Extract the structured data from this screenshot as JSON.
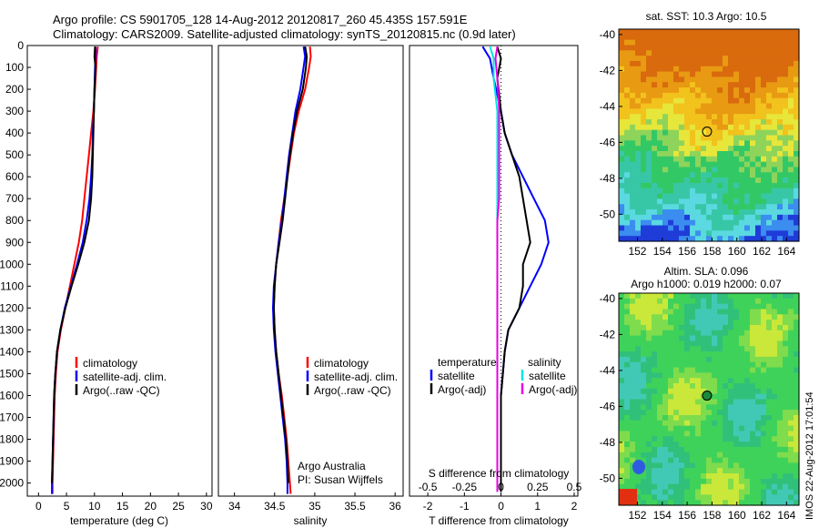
{
  "header": {
    "line1": "Argo profile: CS 5901705_128 14-Aug-2012 20120817_260 45.435S 157.591E",
    "line2": "Climatology: CARS2009. Satellite-adjusted climatology: synTS_20120815.nc (0.9d later)"
  },
  "side_label": "IMOS 22-Aug-2012 17:01:54",
  "chart_data": [
    {
      "type": "line",
      "panel": "temperature",
      "xlabel": "temperature (deg C)",
      "ylabel": "",
      "xlim": [
        -2,
        31
      ],
      "ylim": [
        2060,
        0
      ],
      "xticks": [
        "0",
        "5",
        "10",
        "15",
        "20",
        "25",
        "30"
      ],
      "yticks": [
        "0",
        "100",
        "200",
        "300",
        "400",
        "500",
        "600",
        "700",
        "800",
        "900",
        "1000",
        "1100",
        "1200",
        "1300",
        "1400",
        "1500",
        "1600",
        "1700",
        "1800",
        "1900",
        "2000"
      ],
      "legend": [
        "climatology",
        "satellite-adj. clim.",
        "Argo(..raw -QC)"
      ],
      "legend_position": "lower-center",
      "series": [
        {
          "name": "climatology",
          "color": "#ff0000",
          "x": [
            10.6,
            10.4,
            10.3,
            10.1,
            9.8,
            9.4,
            9.0,
            8.6,
            8.2,
            7.8,
            7.2,
            6.4,
            5.6,
            4.8,
            4.0,
            3.4,
            3.1,
            2.9,
            2.8,
            2.7,
            2.6,
            2.5,
            2.5
          ],
          "y": [
            5,
            50,
            100,
            200,
            300,
            400,
            500,
            600,
            700,
            800,
            900,
            1000,
            1100,
            1200,
            1300,
            1400,
            1500,
            1600,
            1700,
            1800,
            1900,
            2000,
            2050
          ]
        },
        {
          "name": "satellite-adj. clim.",
          "color": "#0000ff",
          "x": [
            10.2,
            10.2,
            10.1,
            10.0,
            9.9,
            9.7,
            9.6,
            9.4,
            9.1,
            8.6,
            7.9,
            6.9,
            5.8,
            4.7,
            3.9,
            3.3,
            3.0,
            2.8,
            2.7,
            2.6,
            2.5,
            2.4,
            2.4
          ],
          "y": [
            5,
            50,
            100,
            200,
            300,
            400,
            500,
            600,
            700,
            800,
            900,
            1000,
            1100,
            1200,
            1300,
            1400,
            1500,
            1600,
            1700,
            1800,
            1900,
            2000,
            2050
          ]
        },
        {
          "name": "Argo(..raw -QC)",
          "color": "#000000",
          "x": [
            10.1,
            10.0,
            10.2,
            10.0,
            9.9,
            9.8,
            9.7,
            9.6,
            9.4,
            9.0,
            8.2,
            7.1,
            5.9,
            4.8,
            3.9,
            3.3,
            3.0,
            2.8,
            2.7,
            2.6,
            2.5,
            2.4
          ],
          "y": [
            5,
            50,
            100,
            200,
            300,
            400,
            500,
            600,
            700,
            800,
            900,
            1000,
            1100,
            1200,
            1300,
            1400,
            1500,
            1600,
            1700,
            1800,
            1900,
            2000
          ]
        }
      ]
    },
    {
      "type": "line",
      "panel": "salinity",
      "xlabel": "salinity",
      "ylabel": "",
      "xlim": [
        33.8,
        36.1
      ],
      "ylim": [
        2060,
        0
      ],
      "xticks": [
        "34",
        "34.5",
        "35",
        "35.5",
        "36"
      ],
      "legend": [
        "climatology",
        "satellite-adj. clim.",
        "Argo(..raw -QC)"
      ],
      "legend_position": "lower-right",
      "annotations": [
        "Argo Australia",
        "PI: Susan Wijffels"
      ],
      "series": [
        {
          "name": "climatology",
          "color": "#ff0000",
          "x": [
            34.94,
            34.95,
            34.93,
            34.88,
            34.8,
            34.74,
            34.7,
            34.66,
            34.62,
            34.58,
            34.55,
            34.52,
            34.5,
            34.49,
            34.5,
            34.52,
            34.55,
            34.59,
            34.62,
            34.65,
            34.67,
            34.69,
            34.7
          ],
          "y": [
            5,
            50,
            100,
            200,
            300,
            400,
            500,
            600,
            700,
            800,
            900,
            1000,
            1100,
            1200,
            1300,
            1400,
            1500,
            1600,
            1700,
            1800,
            1900,
            2000,
            2050
          ]
        },
        {
          "name": "satellite-adj. clim.",
          "color": "#0000ff",
          "x": [
            34.86,
            34.88,
            34.86,
            34.82,
            34.76,
            34.72,
            34.68,
            34.65,
            34.62,
            34.59,
            34.55,
            34.52,
            34.49,
            34.48,
            34.49,
            34.51,
            34.54,
            34.57,
            34.6,
            34.63,
            34.65,
            34.66,
            34.66
          ],
          "y": [
            5,
            50,
            100,
            200,
            300,
            400,
            500,
            600,
            700,
            800,
            900,
            1000,
            1100,
            1200,
            1300,
            1400,
            1500,
            1600,
            1700,
            1800,
            1900,
            2000,
            2050
          ]
        },
        {
          "name": "Argo(..raw -QC)",
          "color": "#000000",
          "x": [
            34.88,
            34.9,
            34.89,
            34.85,
            34.78,
            34.73,
            34.69,
            34.66,
            34.63,
            34.6,
            34.56,
            34.52,
            34.5,
            34.49,
            34.5,
            34.52,
            34.55,
            34.58,
            34.61,
            34.64,
            34.66,
            34.67
          ],
          "y": [
            5,
            50,
            100,
            200,
            300,
            400,
            500,
            600,
            700,
            800,
            900,
            1000,
            1100,
            1200,
            1300,
            1400,
            1500,
            1600,
            1700,
            1800,
            1900,
            2000
          ]
        }
      ]
    },
    {
      "type": "line",
      "panel": "difference",
      "xlabel": "T difference from climatology",
      "xlabel2": "S difference from climatology",
      "ylabel": "",
      "xlim": [
        -2.5,
        2.1
      ],
      "ylim": [
        2060,
        0
      ],
      "xticks": [
        "-2",
        "-1",
        "0",
        "1",
        "2"
      ],
      "xticks2": [
        "-0.5",
        "-0.25",
        "0",
        "0.25",
        "0.5"
      ],
      "legend_headers": [
        "temperature",
        "salinity"
      ],
      "legend": [
        "satellite",
        "Argo(-adj)",
        "satellite",
        "Argo(-adj)"
      ],
      "legend_position": "lower-center",
      "series": [
        {
          "name": "temperature satellite",
          "color": "#0000ff",
          "x": [
            -0.5,
            -0.3,
            -0.2,
            0.0,
            0.1,
            0.3,
            0.6,
            0.9,
            1.2,
            1.3,
            1.1,
            0.8,
            0.5,
            0.2,
            0.1,
            0.05,
            0.0,
            0.0,
            0.0,
            0.0,
            0.0,
            0.0
          ],
          "y": [
            5,
            60,
            150,
            300,
            400,
            500,
            600,
            700,
            800,
            900,
            1000,
            1100,
            1200,
            1300,
            1400,
            1500,
            1600,
            1700,
            1800,
            1900,
            2000,
            2040
          ]
        },
        {
          "name": "temperature Argo(-adj)",
          "color": "#000000",
          "x": [
            -0.1,
            0.0,
            -0.1,
            0.0,
            0.1,
            0.3,
            0.5,
            0.6,
            0.7,
            0.8,
            0.6,
            0.6,
            0.5,
            0.2,
            0.1,
            0.05,
            0.0,
            0.0,
            0.0,
            0.0,
            0.0,
            0.0
          ],
          "y": [
            5,
            60,
            150,
            300,
            400,
            500,
            600,
            700,
            800,
            900,
            1000,
            1100,
            1200,
            1300,
            1400,
            1500,
            1600,
            1700,
            1800,
            1900,
            2000,
            2040
          ]
        },
        {
          "name": "salinity satellite",
          "color": "#00e5e5",
          "x": [
            -0.3,
            -0.2,
            -0.2,
            -0.1,
            -0.1,
            -0.1,
            -0.1,
            -0.1,
            -0.1,
            -0.1,
            -0.1,
            -0.1,
            -0.1,
            -0.1,
            -0.1,
            -0.1,
            -0.1,
            -0.1,
            -0.1,
            -0.1,
            -0.1,
            -0.1
          ],
          "y": [
            5,
            60,
            150,
            300,
            400,
            500,
            600,
            700,
            800,
            900,
            1000,
            1100,
            1200,
            1300,
            1400,
            1500,
            1600,
            1700,
            1800,
            1900,
            2000,
            2040
          ]
        },
        {
          "name": "salinity Argo(-adj)",
          "color": "#e600e6",
          "x": [
            -0.1,
            -0.15,
            -0.1,
            -0.05,
            -0.05,
            -0.05,
            -0.05,
            -0.05,
            -0.1,
            -0.1,
            -0.1,
            -0.1,
            -0.1,
            -0.1,
            -0.1,
            -0.1,
            -0.1,
            -0.1,
            -0.1,
            -0.1,
            -0.1,
            -0.1
          ],
          "y": [
            5,
            60,
            150,
            300,
            400,
            500,
            600,
            700,
            800,
            900,
            1000,
            1100,
            1200,
            1300,
            1400,
            1500,
            1600,
            1700,
            1800,
            1900,
            2000,
            2040
          ]
        }
      ]
    },
    {
      "type": "heatmap",
      "panel": "sst_map",
      "title": "sat. SST: 10.3 Argo: 10.5",
      "xlim": [
        150.5,
        165
      ],
      "ylim": [
        -51.5,
        -39.7
      ],
      "xticks": [
        "152",
        "154",
        "156",
        "158",
        "160",
        "162",
        "164"
      ],
      "yticks": [
        "-40",
        "-42",
        "-44",
        "-46",
        "-48",
        "-50"
      ],
      "marker": {
        "lon": 157.6,
        "lat": -45.4
      }
    },
    {
      "type": "heatmap",
      "panel": "sla_map",
      "title": "Altim. SLA: 0.096",
      "subtitle": "Argo h1000: 0.019 h2000: 0.07",
      "xlim": [
        150.5,
        165
      ],
      "ylim": [
        -51.5,
        -39.7
      ],
      "xticks": [
        "152",
        "154",
        "156",
        "158",
        "160",
        "162",
        "164"
      ],
      "yticks": [
        "-40",
        "-42",
        "-44",
        "-46",
        "-48",
        "-50"
      ],
      "marker": {
        "lon": 157.6,
        "lat": -45.4
      }
    }
  ]
}
